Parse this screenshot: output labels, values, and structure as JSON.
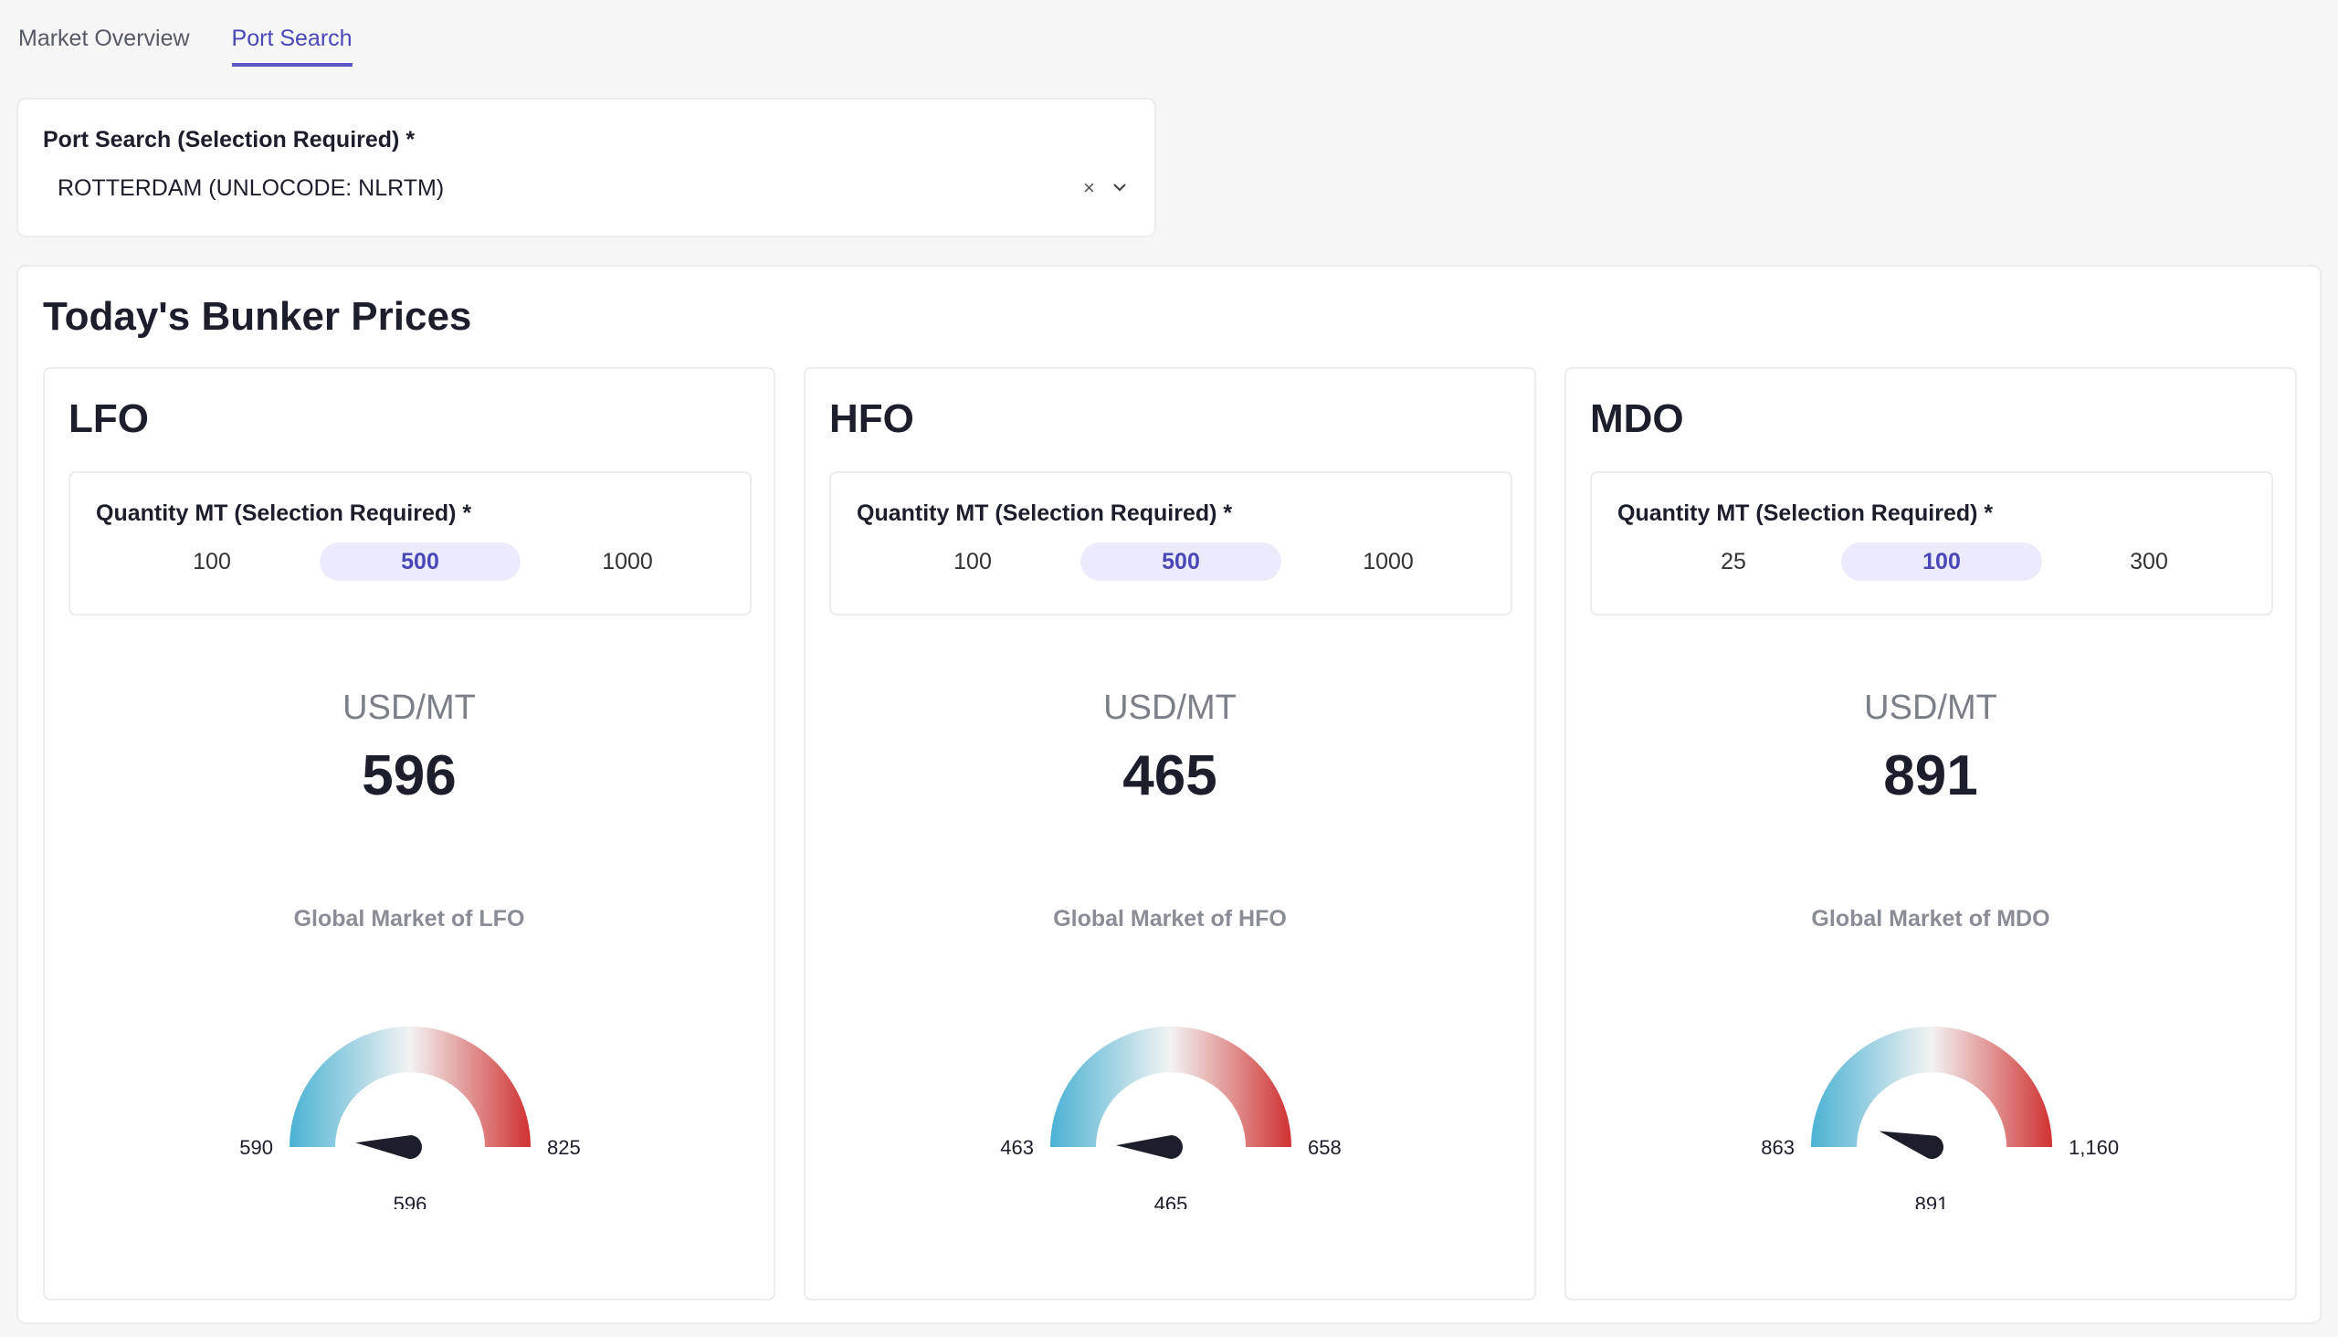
{
  "tabs": [
    {
      "label": "Market Overview",
      "active": false
    },
    {
      "label": "Port Search",
      "active": true
    }
  ],
  "search": {
    "label": "Port Search (Selection Required) *",
    "value": "ROTTERDAM (UNLOCODE: NLRTM)",
    "clear_glyph": "×"
  },
  "prices": {
    "title": "Today's Bunker Prices",
    "fuels": [
      {
        "name": "LFO",
        "quantity_label": "Quantity MT (Selection Required) *",
        "quantity_options": [
          "100",
          "500",
          "1000"
        ],
        "selected_index": 1,
        "unit": "USD/MT",
        "price": "596",
        "global_label": "Global Market of LFO",
        "gauge": {
          "min": 590,
          "max": 825,
          "value": 596,
          "min_label": "590",
          "max_label": "825",
          "value_label": "596"
        }
      },
      {
        "name": "HFO",
        "quantity_label": "Quantity MT (Selection Required) *",
        "quantity_options": [
          "100",
          "500",
          "1000"
        ],
        "selected_index": 1,
        "unit": "USD/MT",
        "price": "465",
        "global_label": "Global Market of HFO",
        "gauge": {
          "min": 463,
          "max": 658,
          "value": 465,
          "min_label": "463",
          "max_label": "658",
          "value_label": "465"
        }
      },
      {
        "name": "MDO",
        "quantity_label": "Quantity MT (Selection Required) *",
        "quantity_options": [
          "25",
          "100",
          "300"
        ],
        "selected_index": 1,
        "unit": "USD/MT",
        "price": "891",
        "global_label": "Global Market of MDO",
        "gauge": {
          "min": 863,
          "max": 1160,
          "value": 891,
          "min_label": "863",
          "max_label": "1,160",
          "value_label": "891"
        }
      }
    ]
  },
  "colors": {
    "accent": "#4a47b8",
    "selected_bg": "#ebebfd",
    "gauge_low": "#4bb2d3",
    "gauge_mid": "#f3f3f3",
    "gauge_high": "#d03232",
    "needle": "#1c1e2b"
  }
}
